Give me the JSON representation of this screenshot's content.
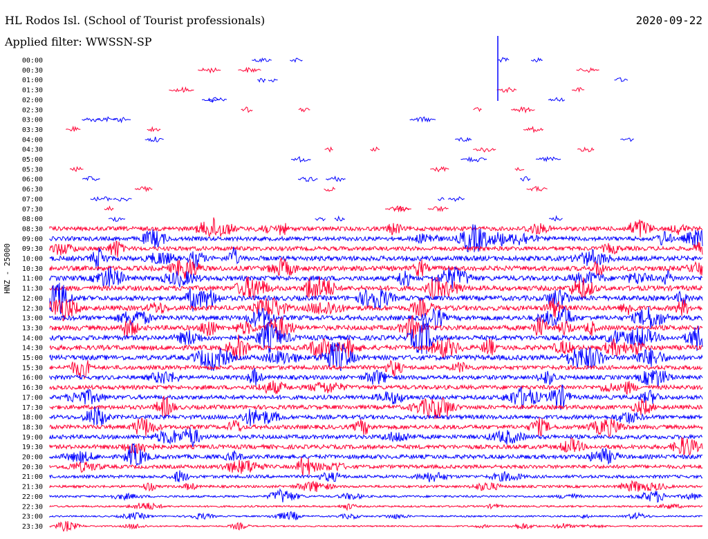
{
  "header": {
    "station": "HL Rodos Isl. (School of Tourist professionals)",
    "date": "2020-09-22",
    "filter": "Applied filter: WWSSN-SP"
  },
  "chart_data": {
    "type": "line",
    "title": "HL Rodos Isl. (School of Tourist professionals)",
    "ylabel": "HNZ - 25000",
    "rows": [
      "00:00",
      "00:30",
      "01:00",
      "01:30",
      "02:00",
      "02:30",
      "03:00",
      "03:30",
      "04:00",
      "04:30",
      "05:00",
      "05:30",
      "06:00",
      "06:30",
      "07:00",
      "07:30",
      "08:00",
      "08:30",
      "09:00",
      "09:30",
      "10:00",
      "10:30",
      "11:00",
      "11:30",
      "12:00",
      "12:30",
      "13:00",
      "13:30",
      "14:00",
      "14:30",
      "15:00",
      "15:30",
      "16:00",
      "16:30",
      "17:00",
      "17:30",
      "18:00",
      "18:30",
      "19:00",
      "19:30",
      "20:00",
      "20:30",
      "21:00",
      "21:30",
      "22:00",
      "22:30",
      "23:00",
      "23:30"
    ],
    "series_colors": [
      "#0000ff",
      "#ff0033"
    ],
    "quiet_rows_until": "08:00",
    "noise_amplitude": [
      0,
      0,
      0,
      0,
      0,
      0,
      0,
      0,
      0,
      0,
      0,
      0,
      0,
      0,
      0,
      0,
      0,
      3,
      3,
      3,
      3.5,
      3.5,
      3.5,
      3.5,
      3.5,
      3.5,
      3.5,
      3.5,
      3.5,
      3.5,
      3.5,
      3,
      3,
      3,
      3,
      3,
      3,
      3,
      3,
      3,
      3,
      2.6,
      2.2,
      1.8,
      1.5,
      1.3,
      1.1,
      1.0
    ]
  }
}
